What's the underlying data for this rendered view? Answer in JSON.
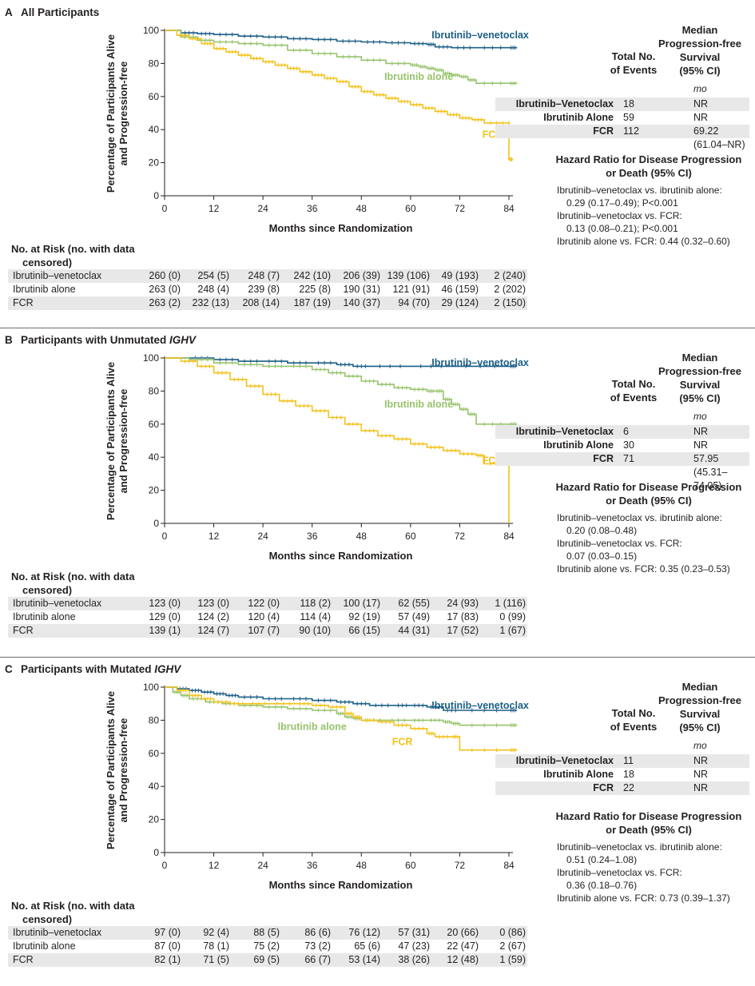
{
  "colors": {
    "ibr_ven": "#1c5f86",
    "ibr": "#97c36c",
    "fcr": "#f2c21b",
    "axis": "#231f20",
    "shade": "#e8e8e9"
  },
  "axis_text": {
    "ylabel_line1": "Percentage of Participants Alive",
    "ylabel_line2": "and Progression-free",
    "xlabel": "Months since Randomization"
  },
  "summary_head": {
    "total_l1": "Total No.",
    "total_l2": "of Events",
    "median_l1": "Median",
    "median_l2": "Progression-free",
    "median_l3": "Survival",
    "median_l4": "(95% CI)",
    "unit": "mo"
  },
  "hr_title": {
    "l1": "Hazard Ratio for Disease Progression",
    "l2": "or Death (95% CI)"
  },
  "risk_title": {
    "l1": "No. at Risk (no. with data",
    "l2": "censored)"
  },
  "chart_data": [
    {
      "panel": "A",
      "title_prefix": "All Participants",
      "title_italic": "",
      "type": "line",
      "xlabel": "Months since Randomization",
      "ylabel": "Percentage of Participants Alive and Progression-free",
      "xlim": [
        0,
        85
      ],
      "ylim": [
        0,
        100
      ],
      "xticks": [
        0,
        12,
        24,
        36,
        48,
        60,
        72,
        84
      ],
      "yticks": [
        0,
        20,
        40,
        60,
        80,
        100
      ],
      "series": [
        {
          "name": "Ibrutinib–venetoclax",
          "color_key": "ibr_ven",
          "label_at": [
            77,
            97
          ],
          "x": [
            0,
            4,
            8,
            12,
            18,
            24,
            30,
            36,
            42,
            48,
            54,
            60,
            64,
            66,
            70,
            76,
            84,
            86
          ],
          "y": [
            100,
            98.5,
            98,
            97.5,
            96.5,
            96,
            95,
            94.5,
            93.5,
            93,
            92.5,
            92,
            91.5,
            90,
            89.5,
            89.5,
            89.5,
            89.5
          ]
        },
        {
          "name": "Ibrutinib alone",
          "color_key": "ibr",
          "label_at": [
            62,
            72
          ],
          "x": [
            0,
            4,
            8,
            12,
            18,
            24,
            30,
            36,
            42,
            48,
            54,
            60,
            62,
            64,
            66,
            68,
            70,
            72,
            74,
            76,
            84,
            86
          ],
          "y": [
            100,
            96,
            94,
            93,
            92,
            91,
            88,
            86,
            84,
            82,
            80,
            79,
            78,
            77,
            76,
            74,
            73,
            72,
            70,
            68,
            68,
            68
          ]
        },
        {
          "name": "FCR",
          "color_key": "fcr",
          "label_at": [
            80,
            37
          ],
          "x": [
            0,
            3,
            6,
            9,
            12,
            15,
            18,
            21,
            24,
            27,
            30,
            33,
            36,
            39,
            42,
            45,
            48,
            51,
            54,
            57,
            60,
            63,
            66,
            69,
            72,
            75,
            78,
            84,
            84,
            85
          ],
          "y": [
            100,
            97,
            95,
            92,
            89,
            87,
            85,
            83,
            81,
            79,
            77,
            75,
            73,
            71,
            69,
            66,
            63,
            61,
            59,
            57,
            55,
            53,
            51,
            49,
            47,
            46,
            44,
            44,
            22,
            22
          ]
        }
      ],
      "summary": [
        {
          "arm": "Ibrutinib–Venetoclax",
          "events": "18",
          "median": "NR"
        },
        {
          "arm": "Ibrutinib Alone",
          "events": "59",
          "median": "NR"
        },
        {
          "arm": "FCR",
          "events": "112",
          "median": "69.22 (61.04–NR)"
        }
      ],
      "hazard_lines": [
        {
          "text": "Ibrutinib–venetoclax vs. ibrutinib alone:",
          "indent": false
        },
        {
          "text": "0.29 (0.17–0.49); P<0.001",
          "indent": true
        },
        {
          "text": "Ibrutinib–venetoclax vs. FCR:",
          "indent": false
        },
        {
          "text": "0.13 (0.08–0.21); P<0.001",
          "indent": true
        },
        {
          "text": "Ibrutinib alone vs. FCR: 0.44 (0.32–0.60)",
          "indent": false
        }
      ],
      "risk": [
        {
          "arm": "Ibrutinib–venetoclax",
          "values": [
            "260 (0)",
            "254 (5)",
            "248 (7)",
            "242 (10)",
            "206 (39)",
            "139 (106)",
            "49 (193)",
            "2 (240)"
          ]
        },
        {
          "arm": "Ibrutinib alone",
          "values": [
            "263 (0)",
            "248 (4)",
            "239 (8)",
            "225 (8)",
            "190 (31)",
            "121 (91)",
            "46 (159)",
            "2 (202)"
          ]
        },
        {
          "arm": "FCR",
          "values": [
            "263 (2)",
            "232 (13)",
            "208 (14)",
            "187 (19)",
            "140 (37)",
            "94 (70)",
            "29 (124)",
            "2 (150)"
          ]
        }
      ]
    },
    {
      "panel": "B",
      "title_prefix": "Participants with Unmutated ",
      "title_italic": "IGHV",
      "type": "line",
      "xlabel": "Months since Randomization",
      "ylabel": "Percentage of Participants Alive and Progression-free",
      "xlim": [
        0,
        85
      ],
      "ylim": [
        0,
        100
      ],
      "xticks": [
        0,
        12,
        24,
        36,
        48,
        60,
        72,
        84
      ],
      "yticks": [
        0,
        20,
        40,
        60,
        80,
        100
      ],
      "series": [
        {
          "name": "Ibrutinib–venetoclax",
          "color_key": "ibr_ven",
          "label_at": [
            77,
            97
          ],
          "x": [
            0,
            6,
            12,
            18,
            24,
            30,
            36,
            42,
            46,
            50,
            60,
            70,
            84,
            86
          ],
          "y": [
            100,
            100,
            99,
            98,
            98,
            97,
            97,
            96,
            95,
            95,
            95,
            95,
            95,
            95
          ]
        },
        {
          "name": "Ibrutinib alone",
          "color_key": "ibr",
          "label_at": [
            62,
            72
          ],
          "x": [
            0,
            6,
            12,
            18,
            24,
            30,
            36,
            40,
            44,
            48,
            52,
            56,
            60,
            64,
            66,
            68,
            70,
            72,
            74,
            76,
            84,
            86
          ],
          "y": [
            100,
            99,
            97,
            96,
            95,
            95,
            93,
            91,
            89,
            86,
            84,
            82,
            81,
            80,
            80,
            75,
            72,
            69,
            66,
            60,
            60,
            60
          ]
        },
        {
          "name": "FCR",
          "color_key": "fcr",
          "label_at": [
            80,
            38
          ],
          "x": [
            0,
            4,
            8,
            12,
            16,
            20,
            24,
            28,
            32,
            36,
            40,
            44,
            48,
            52,
            56,
            60,
            64,
            68,
            72,
            76,
            78,
            84,
            84
          ],
          "y": [
            100,
            98,
            95,
            91,
            87,
            83,
            78,
            74,
            71,
            68,
            64,
            60,
            56,
            53,
            51,
            48,
            46,
            44,
            42,
            41,
            36,
            36,
            0
          ]
        }
      ],
      "summary": [
        {
          "arm": "Ibrutinib–Venetoclax",
          "events": "6",
          "median": "NR"
        },
        {
          "arm": "Ibrutinib Alone",
          "events": "30",
          "median": "NR"
        },
        {
          "arm": "FCR",
          "events": "71",
          "median": "57.95 (45.31–74.05)"
        }
      ],
      "hazard_lines": [
        {
          "text": "Ibrutinib–venetoclax vs. ibrutinib alone:",
          "indent": false
        },
        {
          "text": "0.20 (0.08–0.48)",
          "indent": true
        },
        {
          "text": "Ibrutinib–venetoclax vs. FCR:",
          "indent": false
        },
        {
          "text": "0.07 (0.03–0.15)",
          "indent": true
        },
        {
          "text": "Ibrutinib alone vs. FCR: 0.35 (0.23–0.53)",
          "indent": false
        }
      ],
      "risk": [
        {
          "arm": "Ibrutinib–venetoclax",
          "values": [
            "123 (0)",
            "123 (0)",
            "122 (0)",
            "118 (2)",
            "100 (17)",
            "62 (55)",
            "24 (93)",
            "1 (116)"
          ]
        },
        {
          "arm": "Ibrutinib alone",
          "values": [
            "129 (0)",
            "124 (2)",
            "120 (4)",
            "114 (4)",
            "92 (19)",
            "57 (49)",
            "17 (83)",
            "0 (99)"
          ]
        },
        {
          "arm": "FCR",
          "values": [
            "139 (1)",
            "124 (7)",
            "107 (7)",
            "90 (10)",
            "66 (15)",
            "44 (31)",
            "17 (52)",
            "1 (67)"
          ]
        }
      ]
    },
    {
      "panel": "C",
      "title_prefix": "Participants with Mutated ",
      "title_italic": "IGHV",
      "type": "line",
      "xlabel": "Months since Randomization",
      "ylabel": "Percentage of Participants Alive and Progression-free",
      "xlim": [
        0,
        85
      ],
      "ylim": [
        0,
        100
      ],
      "xticks": [
        0,
        12,
        24,
        36,
        48,
        60,
        72,
        84
      ],
      "yticks": [
        0,
        20,
        40,
        60,
        80,
        100
      ],
      "series": [
        {
          "name": "Ibrutinib–venetoclax",
          "color_key": "ibr_ven",
          "label_at": [
            77,
            89
          ],
          "x": [
            0,
            3,
            6,
            9,
            12,
            15,
            18,
            24,
            30,
            36,
            42,
            46,
            50,
            56,
            60,
            64,
            68,
            72,
            84,
            86
          ],
          "y": [
            100,
            99,
            98,
            97,
            96,
            95,
            94,
            93,
            93,
            92,
            91,
            90,
            89,
            89,
            89,
            88,
            86,
            86,
            86,
            86
          ]
        },
        {
          "name": "Ibrutinib alone",
          "color_key": "ibr",
          "label_at": [
            36,
            76
          ],
          "x": [
            0,
            2,
            4,
            6,
            10,
            14,
            18,
            24,
            30,
            36,
            42,
            44,
            46,
            48,
            54,
            60,
            64,
            68,
            70,
            72,
            84,
            86
          ],
          "y": [
            100,
            97,
            95,
            93,
            91,
            90,
            89,
            88,
            87,
            86,
            84,
            82,
            81,
            80,
            80,
            80,
            80,
            79,
            78,
            77,
            77,
            77
          ]
        },
        {
          "name": "FCR",
          "color_key": "fcr",
          "label_at": [
            58,
            67
          ],
          "x": [
            0,
            3,
            6,
            9,
            12,
            16,
            20,
            26,
            32,
            36,
            40,
            44,
            46,
            48,
            52,
            56,
            60,
            64,
            66,
            70,
            72,
            84,
            86
          ],
          "y": [
            100,
            98,
            95,
            93,
            91,
            90,
            90,
            90,
            90,
            89,
            88,
            84,
            82,
            80,
            79,
            77,
            75,
            72,
            70,
            70,
            62,
            62,
            62
          ]
        }
      ],
      "summary": [
        {
          "arm": "Ibrutinib–Venetoclax",
          "events": "11",
          "median": "NR"
        },
        {
          "arm": "Ibrutinib Alone",
          "events": "18",
          "median": "NR"
        },
        {
          "arm": "FCR",
          "events": "22",
          "median": "NR"
        }
      ],
      "hazard_lines": [
        {
          "text": "Ibrutinib–venetoclax vs. ibrutinib alone:",
          "indent": false
        },
        {
          "text": "0.51 (0.24–1.08)",
          "indent": true
        },
        {
          "text": "Ibrutinib–venetoclax vs. FCR:",
          "indent": false
        },
        {
          "text": "0.36 (0.18–0.76)",
          "indent": true
        },
        {
          "text": "Ibrutinib alone vs. FCR: 0.73 (0.39–1.37)",
          "indent": false
        }
      ],
      "risk": [
        {
          "arm": "Ibrutinib–venetoclax",
          "values": [
            "97 (0)",
            "92 (4)",
            "88 (5)",
            "86 (6)",
            "76 (12)",
            "57 (31)",
            "20 (66)",
            "0 (86)"
          ]
        },
        {
          "arm": "Ibrutinib alone",
          "values": [
            "87 (0)",
            "78 (1)",
            "75 (2)",
            "73 (2)",
            "65 (6)",
            "47 (23)",
            "22 (47)",
            "2 (67)"
          ]
        },
        {
          "arm": "FCR",
          "values": [
            "82 (1)",
            "71 (5)",
            "69 (5)",
            "66 (7)",
            "53 (14)",
            "38 (26)",
            "12 (48)",
            "1 (59)"
          ]
        }
      ]
    }
  ]
}
